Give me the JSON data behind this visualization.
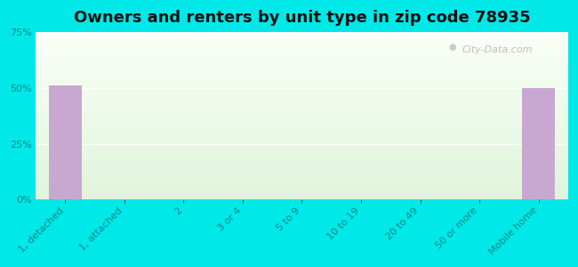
{
  "title": "Owners and renters by unit type in zip code 78935",
  "categories": [
    "1, detached",
    "1, attached",
    "2",
    "3 or 4",
    "5 to 9",
    "10 to 19",
    "20 to 49",
    "50 or more",
    "Mobile home"
  ],
  "values": [
    51,
    0,
    0,
    0,
    0,
    0,
    0,
    0,
    50
  ],
  "bar_color": "#c8a8d0",
  "background_color": "#00e8e8",
  "ylim": [
    0,
    75
  ],
  "yticks": [
    0,
    25,
    50,
    75
  ],
  "ytick_labels": [
    "0%",
    "25%",
    "50%",
    "75%"
  ],
  "title_fontsize": 13,
  "tick_label_fontsize": 8,
  "ytick_fontsize": 8,
  "watermark": "City-Data.com",
  "gradient_top_color": "#f0f8f0",
  "gradient_bottom_color": "#e8f4e0",
  "tick_color": "#008888"
}
